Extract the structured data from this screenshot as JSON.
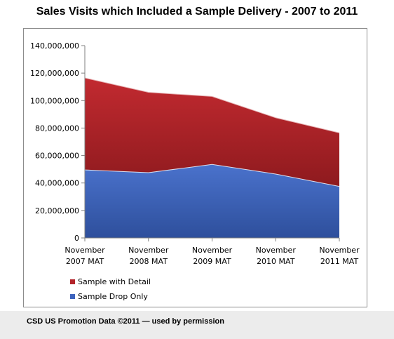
{
  "title": "Sales Visits which Included a Sample Delivery - 2007 to 2011",
  "footer": "CSD US Promotion Data ©2011 — used by permission",
  "colors": {
    "sample_with_detail": "#b3242a",
    "sample_drop_only": "#3d63bd",
    "axis": "#7f7f7f",
    "text": "#000000"
  },
  "chart_data": {
    "type": "area",
    "stacked": true,
    "title": "Sales Visits which Included a Sample Delivery - 2007 to 2011",
    "categories": [
      [
        "November",
        "2007 MAT"
      ],
      [
        "November",
        "2008 MAT"
      ],
      [
        "November",
        "2009 MAT"
      ],
      [
        "November",
        "2010 MAT"
      ],
      [
        "November",
        "2011 MAT"
      ]
    ],
    "series": [
      {
        "name": "Sample Drop Only",
        "color": "#3d63bd",
        "values": [
          49500000,
          47500000,
          53500000,
          46500000,
          37500000
        ]
      },
      {
        "name": "Sample with Detail",
        "color": "#b3242a",
        "values": [
          67000000,
          58500000,
          49500000,
          41000000,
          39000000
        ]
      }
    ],
    "ylim": [
      0,
      140000000
    ],
    "yticks": [
      0,
      20000000,
      40000000,
      60000000,
      80000000,
      100000000,
      120000000,
      140000000
    ],
    "ytick_labels": [
      "0",
      "20,000,000",
      "40,000,000",
      "60,000,000",
      "80,000,000",
      "100,000,000",
      "120,000,000",
      "140,000,000"
    ],
    "grid": false,
    "legend_position": "bottom-left",
    "legend": [
      "Sample with Detail",
      "Sample Drop Only"
    ]
  }
}
